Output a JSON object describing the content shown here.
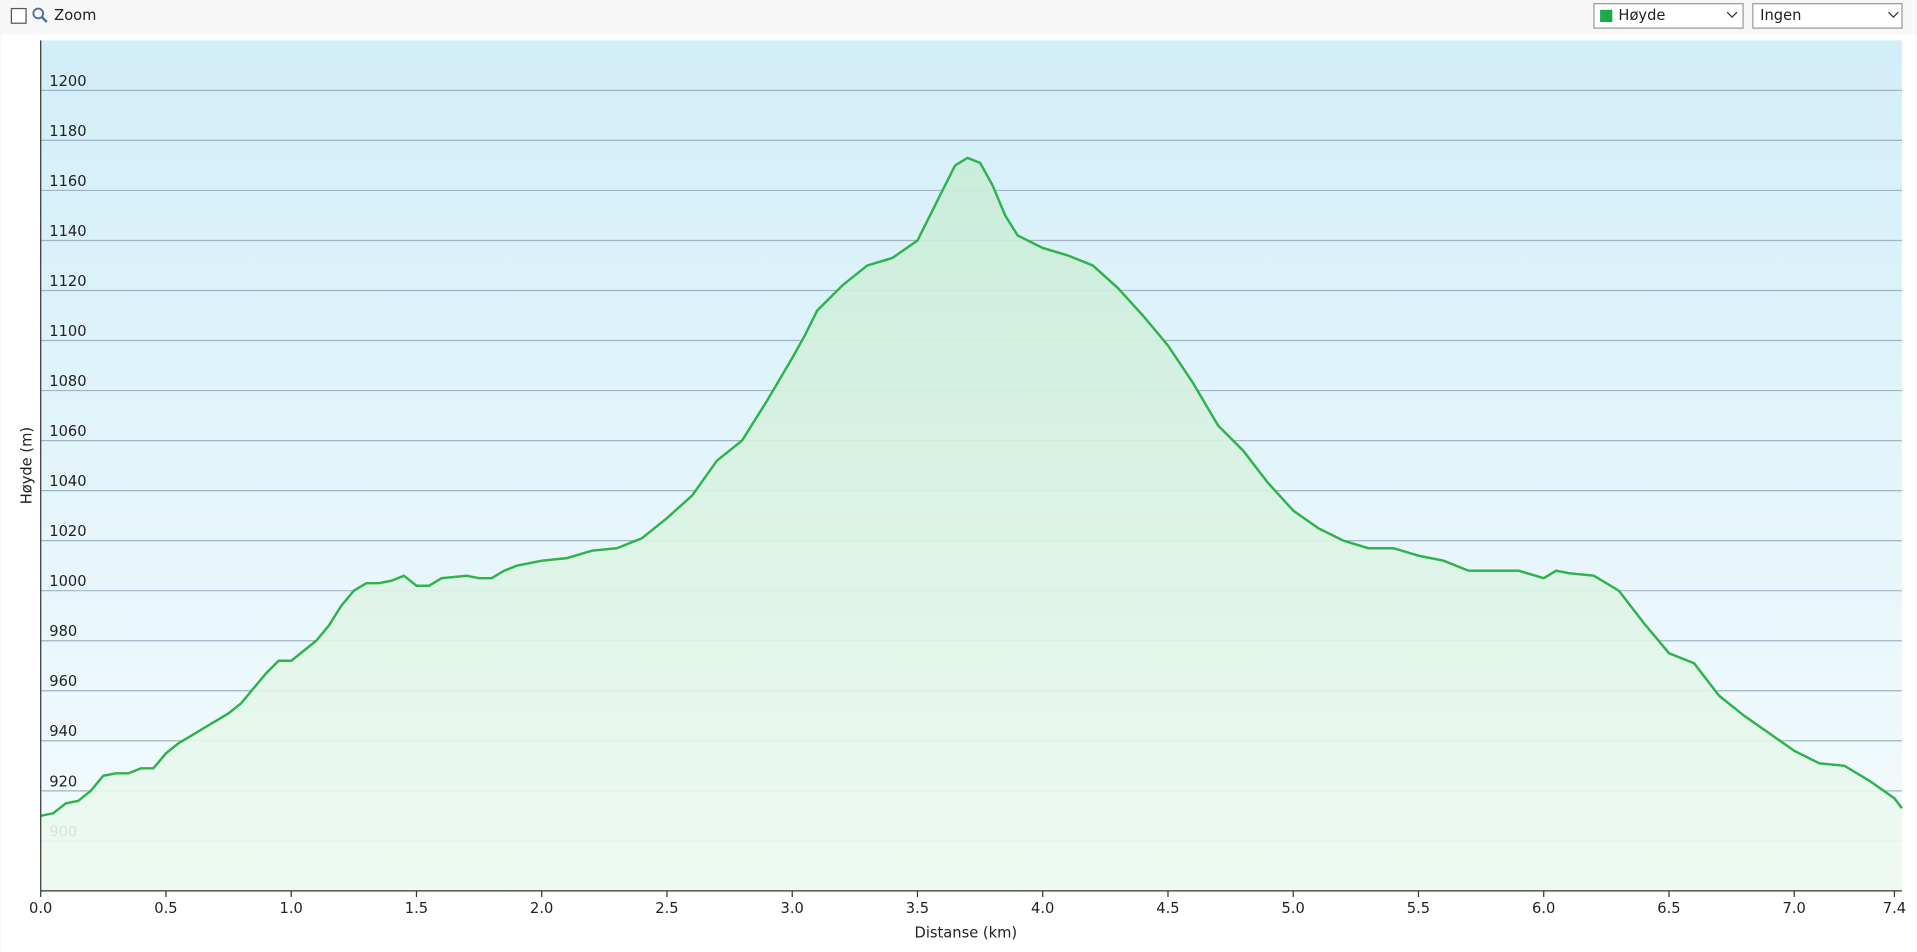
{
  "toolbar": {
    "zoom_label": "Zoom",
    "series_select": "Høyde",
    "compare_select": "Ingen"
  },
  "chart_data": {
    "type": "area",
    "x_label": "Distanse  (km)",
    "y_label": "Høyde (m)",
    "color": "#2db34a",
    "x": [
      0,
      0.05,
      0.1,
      0.15,
      0.2,
      0.25,
      0.3,
      0.35,
      0.4,
      0.45,
      0.5,
      0.55,
      0.6,
      0.65,
      0.7,
      0.75,
      0.8,
      0.85,
      0.9,
      0.95,
      1.0,
      1.05,
      1.1,
      1.15,
      1.2,
      1.25,
      1.3,
      1.35,
      1.4,
      1.45,
      1.5,
      1.55,
      1.6,
      1.7,
      1.75,
      1.8,
      1.85,
      1.9,
      2.0,
      2.1,
      2.2,
      2.3,
      2.4,
      2.5,
      2.6,
      2.7,
      2.8,
      2.9,
      3.0,
      3.05,
      3.1,
      3.2,
      3.3,
      3.4,
      3.5,
      3.55,
      3.6,
      3.65,
      3.7,
      3.75,
      3.8,
      3.85,
      3.9,
      4.0,
      4.1,
      4.2,
      4.3,
      4.4,
      4.5,
      4.6,
      4.7,
      4.8,
      4.9,
      5.0,
      5.1,
      5.2,
      5.3,
      5.4,
      5.5,
      5.6,
      5.7,
      5.8,
      5.9,
      6.0,
      6.05,
      6.1,
      6.2,
      6.3,
      6.4,
      6.5,
      6.6,
      6.7,
      6.8,
      6.9,
      7.0,
      7.1,
      7.2,
      7.3,
      7.4,
      7.43
    ],
    "values": [
      910,
      911,
      915,
      916,
      920,
      926,
      927,
      927,
      929,
      929,
      935,
      939,
      942,
      945,
      948,
      951,
      955,
      961,
      967,
      972,
      972,
      976,
      980,
      986,
      994,
      1000,
      1003,
      1003,
      1004,
      1006,
      1002,
      1002,
      1005,
      1006,
      1005,
      1005,
      1008,
      1010,
      1012,
      1013,
      1016,
      1017,
      1021,
      1029,
      1038,
      1052,
      1060,
      1076,
      1093,
      1102,
      1112,
      1122,
      1130,
      1133,
      1140,
      1150,
      1160,
      1170,
      1173,
      1171,
      1162,
      1150,
      1142,
      1137,
      1134,
      1130,
      1121,
      1110,
      1098,
      1083,
      1066,
      1056,
      1043,
      1032,
      1025,
      1020,
      1017,
      1017,
      1014,
      1012,
      1008,
      1008,
      1008,
      1005,
      1008,
      1007,
      1006,
      1000,
      987,
      975,
      971,
      958,
      950,
      943,
      936,
      931,
      930,
      924,
      917,
      913
    ],
    "xlim": [
      0,
      7.43
    ],
    "xticks": [
      {
        "value": 0,
        "label": "0.0"
      },
      0.5,
      {
        "value": 1,
        "label": "1.0"
      },
      1.5,
      {
        "value": 2,
        "label": "2.0"
      },
      2.5,
      {
        "value": 3,
        "label": "3.0"
      },
      3.5,
      {
        "value": 4,
        "label": "4.0"
      },
      4.5,
      {
        "value": 5,
        "label": "5.0"
      },
      5.5,
      {
        "value": 6,
        "label": "6.0"
      },
      6.5,
      {
        "value": 7,
        "label": "7.0"
      },
      7.4
    ],
    "ylim": [
      880,
      1220
    ],
    "yticks": [
      900,
      920,
      940,
      960,
      980,
      1000,
      1020,
      1040,
      1060,
      1080,
      1100,
      1120,
      1140,
      1160,
      1180,
      1200
    ],
    "grid": true
  }
}
